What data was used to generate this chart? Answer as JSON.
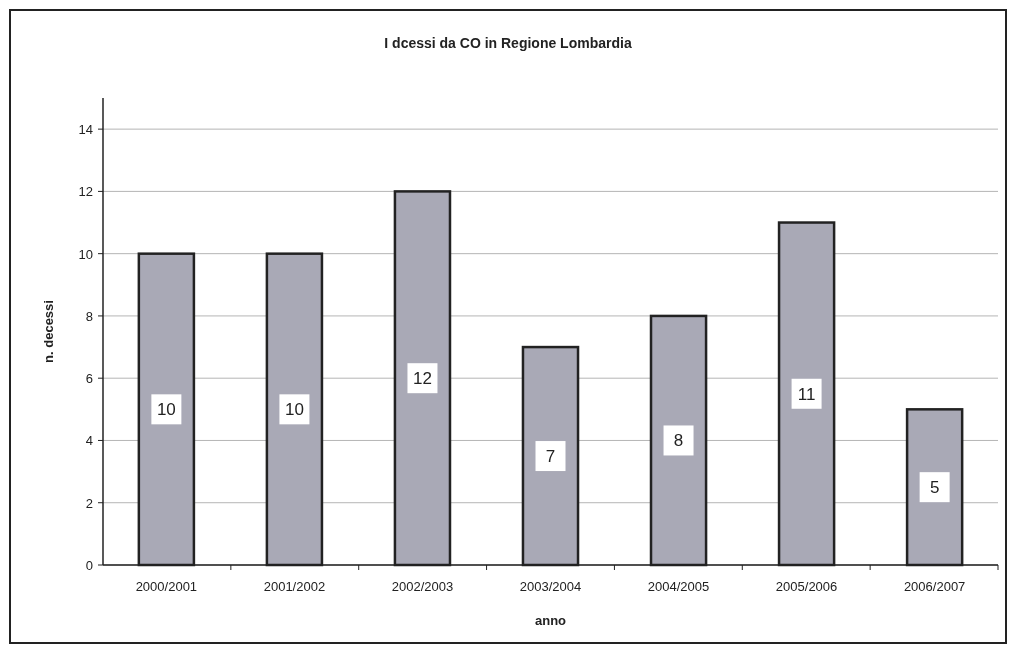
{
  "chart_data": {
    "type": "bar",
    "title": "I dcessi da CO in Regione Lombardia",
    "xlabel": "anno",
    "ylabel": "n. decessi",
    "categories": [
      "2000/2001",
      "2001/2002",
      "2002/2003",
      "2003/2004",
      "2004/2005",
      "2005/2006",
      "2006/2007"
    ],
    "values": [
      10,
      10,
      12,
      7,
      8,
      11,
      5
    ],
    "color": "#a9a9b6",
    "ylim": [
      0,
      15
    ],
    "yticks": [
      0,
      2,
      4,
      6,
      8,
      10,
      12,
      14
    ],
    "grid": "y",
    "data_labels": true
  }
}
